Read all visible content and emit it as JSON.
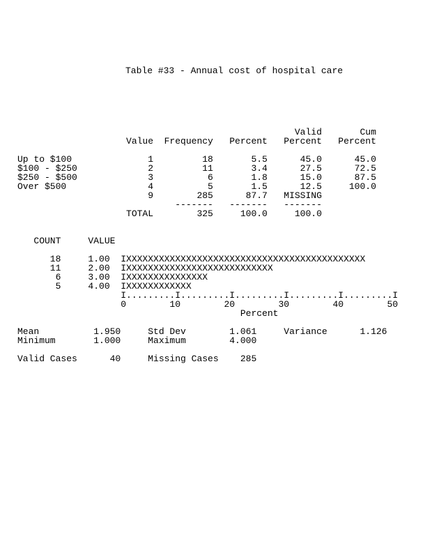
{
  "title": "Table #33 - Annual cost of hospital care",
  "freq_table": {
    "headers": {
      "value": "Value",
      "frequency": "Frequency",
      "percent": "Percent",
      "valid_percent_l1": "Valid",
      "valid_percent_l2": "Percent",
      "cum_percent_l1": "Cum",
      "cum_percent_l2": "Percent"
    },
    "rows": [
      {
        "label": "Up to $100",
        "value": "1",
        "frequency": "18",
        "percent": "5.5",
        "valid": "45.0",
        "cum": "45.0"
      },
      {
        "label": "$100 - $250",
        "value": "2",
        "frequency": "11",
        "percent": "3.4",
        "valid": "27.5",
        "cum": "72.5"
      },
      {
        "label": "$250 - $500",
        "value": "3",
        "frequency": "6",
        "percent": "1.8",
        "valid": "15.0",
        "cum": "87.5"
      },
      {
        "label": "Over $500",
        "value": "4",
        "frequency": "5",
        "percent": "1.5",
        "valid": "12.5",
        "cum": "100.0"
      },
      {
        "label": "",
        "value": "9",
        "frequency": "285",
        "percent": "87.7",
        "valid": "MISSING",
        "cum": ""
      }
    ],
    "sep_cols": {
      "frequency": "-------",
      "percent": "-------",
      "valid": "-------"
    },
    "total": {
      "label": "TOTAL",
      "frequency": "325",
      "percent": "100.0",
      "valid": "100.0"
    }
  },
  "histogram": {
    "count_header": "COUNT",
    "value_header": "VALUE",
    "rows": [
      {
        "count": "18",
        "value": "1.00",
        "bar": "XXXXXXXXXXXXXXXXXXXXXXXXXXXXXXXXXXXXXXXXXXXX"
      },
      {
        "count": "11",
        "value": "2.00",
        "bar": "XXXXXXXXXXXXXXXXXXXXXXXXXXX"
      },
      {
        "count": "6",
        "value": "3.00",
        "bar": "XXXXXXXXXXXXXXX"
      },
      {
        "count": "5",
        "value": "4.00",
        "bar": "XXXXXXXXXXXX"
      }
    ],
    "axis_line": "I.........I.........I.........I.........I.........I",
    "axis_ticks_line": "0        10        20        30        40        50",
    "axis_label": "Percent"
  },
  "stats": {
    "l1": {
      "mean_lbl": "Mean",
      "mean": "1.950",
      "std_lbl": "Std Dev",
      "std": "1.061",
      "var_lbl": "Variance",
      "var": "1.126"
    },
    "l2": {
      "min_lbl": "Minimum",
      "min": "1.000",
      "max_lbl": "Maximum",
      "max": "4.000"
    },
    "l3": {
      "valid_lbl": "Valid Cases",
      "valid": "40",
      "miss_lbl": "Missing Cases",
      "miss": "285"
    }
  }
}
